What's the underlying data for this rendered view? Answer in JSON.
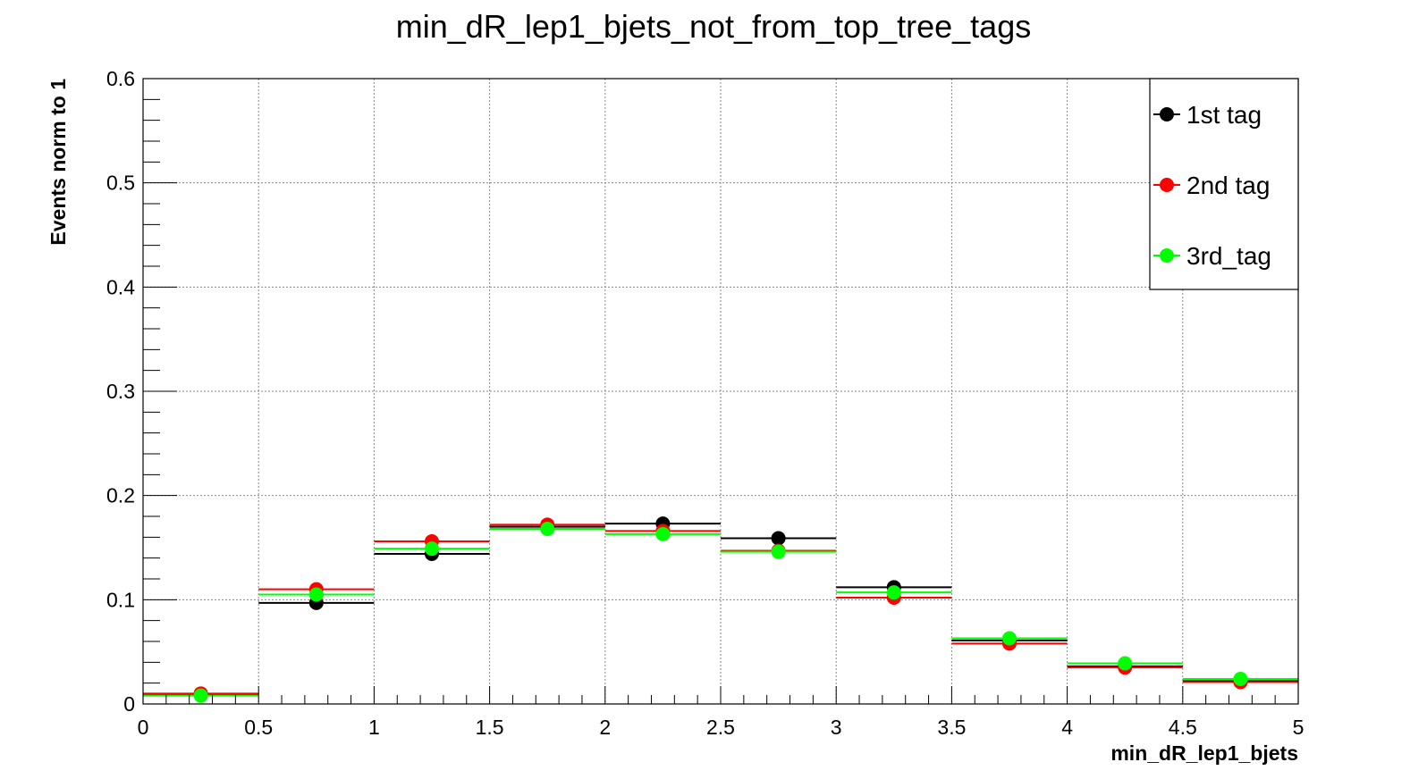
{
  "chart_data": {
    "type": "scatter",
    "title": "min_dR_lep1_bjets_not_from_top_tree_tags",
    "xlabel": "min_dR_lep1_bjets",
    "ylabel": "Events norm to 1",
    "xlim": [
      0,
      5
    ],
    "ylim": [
      0,
      0.6
    ],
    "x_ticks": [
      "0",
      "0.5",
      "1",
      "1.5",
      "2",
      "2.5",
      "3",
      "3.5",
      "4",
      "4.5",
      "5"
    ],
    "y_ticks": [
      "0",
      "0.1",
      "0.2",
      "0.3",
      "0.4",
      "0.5",
      "0.6"
    ],
    "grid": true,
    "legend_position": "top-right",
    "bin_edges": [
      0,
      0.5,
      1,
      1.5,
      2,
      2.5,
      3,
      3.5,
      4,
      4.5,
      5
    ],
    "series": [
      {
        "name": "1st tag",
        "color": "#000000",
        "values": [
          0.009,
          0.097,
          0.144,
          0.17,
          0.173,
          0.159,
          0.112,
          0.061,
          0.036,
          0.022
        ]
      },
      {
        "name": "2nd tag",
        "color": "#ff0000",
        "values": [
          0.01,
          0.11,
          0.156,
          0.172,
          0.166,
          0.147,
          0.102,
          0.058,
          0.035,
          0.021
        ]
      },
      {
        "name": "3rd_tag",
        "color": "#00ff00",
        "values": [
          0.008,
          0.105,
          0.149,
          0.168,
          0.163,
          0.146,
          0.107,
          0.063,
          0.039,
          0.024
        ]
      }
    ]
  }
}
